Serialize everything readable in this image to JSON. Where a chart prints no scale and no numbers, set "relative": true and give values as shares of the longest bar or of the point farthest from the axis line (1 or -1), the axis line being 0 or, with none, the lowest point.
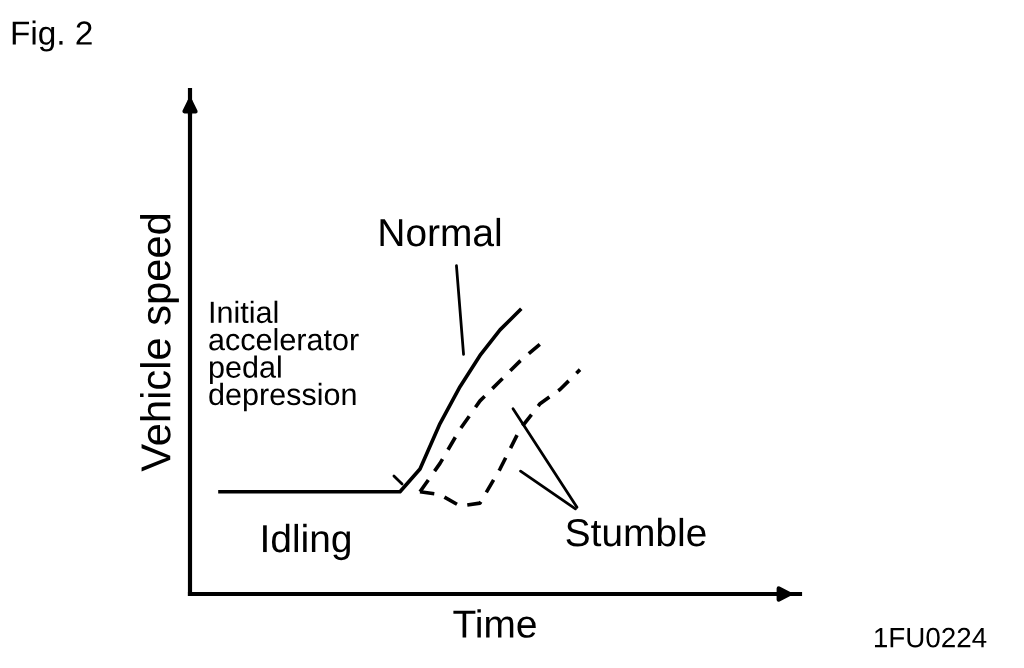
{
  "chart_data": {
    "type": "line",
    "relative": true,
    "title": "Fig. 2",
    "xlabel": "Time",
    "ylabel": "Vehicle speed",
    "categories": [
      null,
      null,
      null,
      null,
      null,
      null,
      null,
      null,
      null,
      null,
      null,
      null,
      null,
      null,
      null,
      null,
      null,
      null,
      null
    ],
    "series": [
      {
        "color": "#000000",
        "line_style": "solid",
        "values": [
          0.36,
          0.36,
          0.36,
          0.36,
          0.36,
          0.36,
          0.36,
          0.36,
          0.36,
          0.36,
          0.44,
          0.6,
          0.73,
          0.84,
          0.93,
          1.0,
          null,
          null,
          null
        ]
      },
      {
        "color": "#000000",
        "line_style": "dashed",
        "values": [
          null,
          null,
          null,
          null,
          null,
          null,
          null,
          null,
          null,
          null,
          0.36,
          0.46,
          0.58,
          0.68,
          0.75,
          0.82,
          0.88,
          null,
          null
        ]
      },
      {
        "color": "#000000",
        "line_style": "dashed",
        "values": [
          null,
          null,
          null,
          null,
          null,
          null,
          null,
          null,
          null,
          null,
          0.36,
          0.35,
          0.31,
          0.32,
          0.44,
          0.58,
          0.67,
          0.72,
          0.79
        ]
      }
    ],
    "annotations": [
      "Normal",
      "Initial\naccelerator\npedal\ndepression",
      "Idling",
      "Stumble",
      "1FU0224"
    ],
    "grid": false,
    "legend": false,
    "marker": "none"
  }
}
